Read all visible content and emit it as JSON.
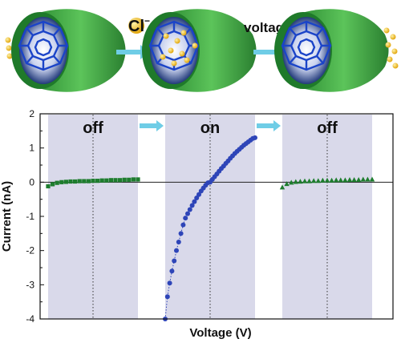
{
  "chart_data": {
    "type": "scatter",
    "xlabel": "Voltage (V)",
    "ylabel": "Current (nA)",
    "ylim": [
      -4,
      2
    ],
    "yticks": [
      "2",
      "1",
      "0",
      "-1",
      "-2",
      "-3",
      "-4"
    ],
    "x_tick_labels": false,
    "grid": false,
    "colors": {
      "panel_shade": "#d9d9ea",
      "off_series": "#1e7d2e",
      "on_series": "#2e45b8",
      "arrow": "#6fcde6",
      "tube": "#3fae45",
      "ion": "#f2b91a",
      "cage": "#1b44c8"
    },
    "panels": [
      {
        "state_label": "off",
        "marker": "square",
        "x": [
          -1.0,
          -0.9,
          -0.8,
          -0.7,
          -0.6,
          -0.5,
          -0.4,
          -0.3,
          -0.2,
          -0.1,
          0.0,
          0.1,
          0.2,
          0.3,
          0.4,
          0.5,
          0.6,
          0.7,
          0.8,
          0.9,
          1.0
        ],
        "y": [
          -0.12,
          -0.06,
          -0.02,
          0.0,
          0.01,
          0.02,
          0.02,
          0.03,
          0.03,
          0.03,
          0.04,
          0.04,
          0.05,
          0.05,
          0.06,
          0.06,
          0.06,
          0.07,
          0.07,
          0.08,
          0.08
        ]
      },
      {
        "state_label": "on",
        "marker": "circle",
        "x": [
          -1.0,
          -0.95,
          -0.9,
          -0.85,
          -0.8,
          -0.75,
          -0.7,
          -0.65,
          -0.6,
          -0.55,
          -0.5,
          -0.45,
          -0.4,
          -0.35,
          -0.3,
          -0.25,
          -0.2,
          -0.15,
          -0.1,
          -0.05,
          0.0,
          0.05,
          0.1,
          0.15,
          0.2,
          0.25,
          0.3,
          0.35,
          0.4,
          0.45,
          0.5,
          0.55,
          0.6,
          0.65,
          0.7,
          0.75,
          0.8,
          0.85,
          0.9,
          0.95,
          1.0
        ],
        "y": [
          -4.0,
          -3.35,
          -2.95,
          -2.6,
          -2.3,
          -2.0,
          -1.75,
          -1.5,
          -1.25,
          -1.05,
          -0.92,
          -0.8,
          -0.68,
          -0.57,
          -0.46,
          -0.36,
          -0.26,
          -0.17,
          -0.09,
          -0.02,
          0.0,
          0.08,
          0.16,
          0.24,
          0.32,
          0.4,
          0.47,
          0.55,
          0.62,
          0.7,
          0.77,
          0.84,
          0.9,
          0.96,
          1.02,
          1.08,
          1.13,
          1.18,
          1.23,
          1.28,
          1.3
        ]
      },
      {
        "state_label": "off",
        "marker": "triangle",
        "x": [
          -1.0,
          -0.9,
          -0.8,
          -0.7,
          -0.6,
          -0.5,
          -0.4,
          -0.3,
          -0.2,
          -0.1,
          0.0,
          0.1,
          0.2,
          0.3,
          0.4,
          0.5,
          0.6,
          0.7,
          0.8,
          0.9,
          1.0
        ],
        "y": [
          -0.15,
          -0.05,
          -0.01,
          0.01,
          0.02,
          0.03,
          0.03,
          0.04,
          0.04,
          0.05,
          0.05,
          0.05,
          0.06,
          0.06,
          0.06,
          0.07,
          0.07,
          0.07,
          0.08,
          0.08,
          0.08
        ]
      }
    ],
    "x_range": [
      -1,
      1
    ]
  },
  "schematic": {
    "ion_label": "Cl",
    "ion_charge": "−",
    "trigger_label": "voltage",
    "tubes": [
      {
        "state": "closed",
        "ions_outside": true,
        "ions_inside": false
      },
      {
        "state": "open",
        "ions_outside": false,
        "ions_inside": true
      },
      {
        "state": "closed",
        "ions_outside": true,
        "ions_inside": false
      }
    ]
  }
}
